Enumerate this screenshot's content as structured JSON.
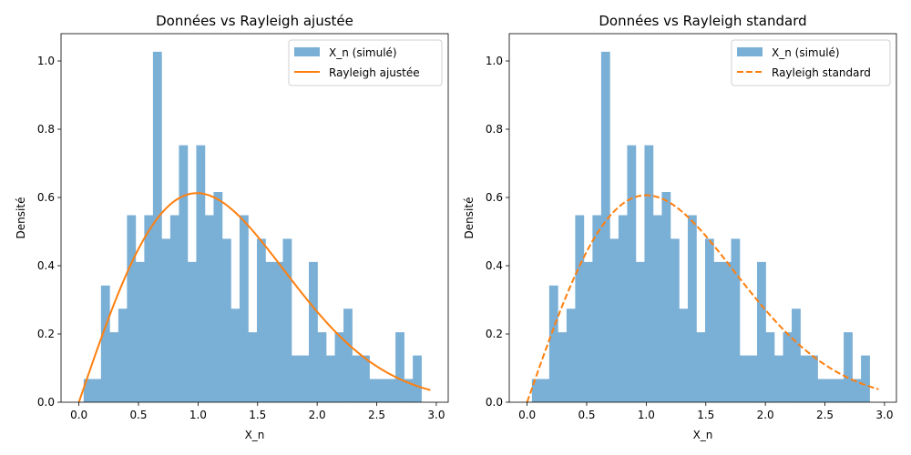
{
  "chart_data": [
    {
      "type": "histogram",
      "title": "Données vs Rayleigh ajustée",
      "xlabel": "X_n",
      "ylabel": "Densité",
      "xlim": [
        -0.15,
        3.1
      ],
      "ylim": [
        0,
        1.08
      ],
      "xticks": [
        0.0,
        0.5,
        1.0,
        1.5,
        2.0,
        2.5,
        3.0
      ],
      "yticks": [
        0.0,
        0.2,
        0.4,
        0.6,
        0.8,
        1.0
      ],
      "x_tick_labels": [
        "0.0",
        "0.5",
        "1.0",
        "1.5",
        "2.0",
        "2.5",
        "3.0"
      ],
      "y_tick_labels": [
        "0.0",
        "0.2",
        "0.4",
        "0.6",
        "0.8",
        "1.0"
      ],
      "histogram": {
        "name": "X_n (simulé)",
        "color": "#7aafd6",
        "bins_start": 0.04,
        "bin_width": 0.0727,
        "densities": [
          0.068,
          0.068,
          0.342,
          0.205,
          0.274,
          0.548,
          0.411,
          0.548,
          1.027,
          0.479,
          0.548,
          0.753,
          0.411,
          0.753,
          0.548,
          0.616,
          0.479,
          0.274,
          0.548,
          0.205,
          0.479,
          0.411,
          0.411,
          0.479,
          0.137,
          0.137,
          0.411,
          0.205,
          0.137,
          0.205,
          0.274,
          0.137,
          0.137,
          0.068,
          0.068,
          0.068,
          0.205,
          0.068,
          0.137
        ]
      },
      "curve": {
        "name": "Rayleigh ajustée",
        "color": "#ff7f0e",
        "style": "solid",
        "sigma": 0.99,
        "x_range": [
          0.0,
          2.95
        ]
      },
      "legend_position": "top-right"
    },
    {
      "type": "histogram",
      "title": "Données vs Rayleigh standard",
      "xlabel": "X_n",
      "ylabel": "Densité",
      "xlim": [
        -0.15,
        3.1
      ],
      "ylim": [
        0,
        1.08
      ],
      "xticks": [
        0.0,
        0.5,
        1.0,
        1.5,
        2.0,
        2.5,
        3.0
      ],
      "yticks": [
        0.0,
        0.2,
        0.4,
        0.6,
        0.8,
        1.0
      ],
      "x_tick_labels": [
        "0.0",
        "0.5",
        "1.0",
        "1.5",
        "2.0",
        "2.5",
        "3.0"
      ],
      "y_tick_labels": [
        "0.0",
        "0.2",
        "0.4",
        "0.6",
        "0.8",
        "1.0"
      ],
      "histogram": {
        "name": "X_n (simulé)",
        "color": "#7aafd6",
        "bins_start": 0.04,
        "bin_width": 0.0727,
        "densities": [
          0.068,
          0.068,
          0.342,
          0.205,
          0.274,
          0.548,
          0.411,
          0.548,
          1.027,
          0.479,
          0.548,
          0.753,
          0.411,
          0.753,
          0.548,
          0.616,
          0.479,
          0.274,
          0.548,
          0.205,
          0.479,
          0.411,
          0.411,
          0.479,
          0.137,
          0.137,
          0.411,
          0.205,
          0.137,
          0.205,
          0.274,
          0.137,
          0.137,
          0.068,
          0.068,
          0.068,
          0.205,
          0.068,
          0.137
        ]
      },
      "curve": {
        "name": "Rayleigh standard",
        "color": "#ff7f0e",
        "style": "dashed",
        "sigma": 1.0,
        "x_range": [
          0.0,
          2.95
        ]
      },
      "legend_position": "top-right"
    }
  ]
}
